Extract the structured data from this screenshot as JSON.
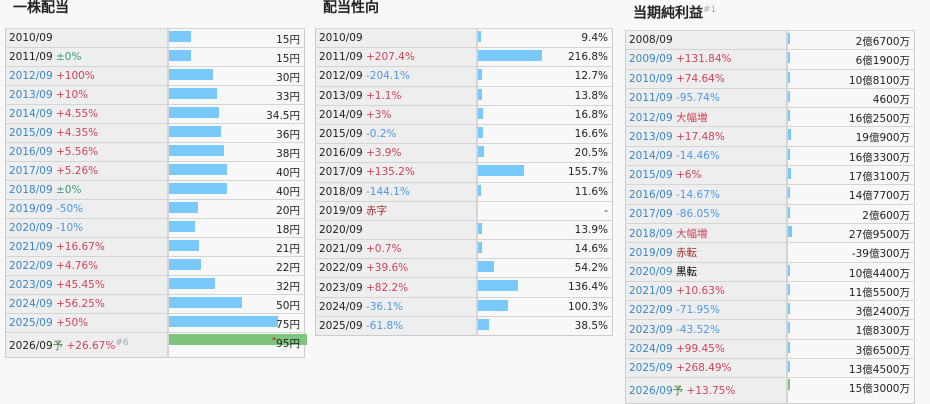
{
  "colors": {
    "bar": "#79c9fb",
    "forecast_bar": "#7dc57d",
    "up": "#d0445a",
    "down": "#4a9ae8"
  },
  "dividend": {
    "title": "一株配当",
    "rows": [
      {
        "period": "2010/09",
        "change": "",
        "type": "",
        "value": "15円",
        "num": 15
      },
      {
        "period": "2011/09",
        "change": "±0%",
        "type": "flat",
        "value": "15円",
        "num": 15
      },
      {
        "period": "2012/09",
        "change": "+100%",
        "type": "up",
        "value": "30円",
        "num": 30,
        "link": true
      },
      {
        "period": "2013/09",
        "change": "+10%",
        "type": "up",
        "value": "33円",
        "num": 33,
        "link": true
      },
      {
        "period": "2014/09",
        "change": "+4.55%",
        "type": "up",
        "value": "34.5円",
        "num": 34.5,
        "link": true
      },
      {
        "period": "2015/09",
        "change": "+4.35%",
        "type": "up",
        "value": "36円",
        "num": 36,
        "link": true
      },
      {
        "period": "2016/09",
        "change": "+5.56%",
        "type": "up",
        "value": "38円",
        "num": 38,
        "link": true
      },
      {
        "period": "2017/09",
        "change": "+5.26%",
        "type": "up",
        "value": "40円",
        "num": 40,
        "link": true
      },
      {
        "period": "2018/09",
        "change": "±0%",
        "type": "flat",
        "value": "40円",
        "num": 40,
        "link": true
      },
      {
        "period": "2019/09",
        "change": "-50%",
        "type": "down",
        "value": "20円",
        "num": 20,
        "link": true
      },
      {
        "period": "2020/09",
        "change": "-10%",
        "type": "down",
        "value": "18円",
        "num": 18,
        "link": true
      },
      {
        "period": "2021/09",
        "change": "+16.67%",
        "type": "up",
        "value": "21円",
        "num": 21,
        "link": true
      },
      {
        "period": "2022/09",
        "change": "+4.76%",
        "type": "up",
        "value": "22円",
        "num": 22,
        "link": true
      },
      {
        "period": "2023/09",
        "change": "+45.45%",
        "type": "up",
        "value": "32円",
        "num": 32,
        "link": true
      },
      {
        "period": "2024/09",
        "change": "+56.25%",
        "type": "up",
        "value": "50円",
        "num": 50,
        "link": true
      },
      {
        "period": "2025/09",
        "change": "+50%",
        "type": "up",
        "value": "75円",
        "num": 75,
        "link": true
      },
      {
        "period": "2026/09",
        "forecast": "予",
        "change": "+26.67%",
        "type": "up",
        "note": "#6",
        "asterisk": "*",
        "value": "95円",
        "num": 95
      }
    ]
  },
  "payout": {
    "title": "配当性向",
    "rows": [
      {
        "period": "2010/09",
        "change": "",
        "type": "",
        "value": "9.4%",
        "num": 9.4
      },
      {
        "period": "2011/09",
        "change": "+207.4%",
        "type": "up",
        "value": "216.8%",
        "num": 216.8
      },
      {
        "period": "2012/09",
        "change": "-204.1%",
        "type": "down",
        "value": "12.7%",
        "num": 12.7
      },
      {
        "period": "2013/09",
        "change": "+1.1%",
        "type": "up",
        "value": "13.8%",
        "num": 13.8
      },
      {
        "period": "2014/09",
        "change": "+3%",
        "type": "up",
        "value": "16.8%",
        "num": 16.8
      },
      {
        "period": "2015/09",
        "change": "-0.2%",
        "type": "down",
        "value": "16.6%",
        "num": 16.6
      },
      {
        "period": "2016/09",
        "change": "+3.9%",
        "type": "up",
        "value": "20.5%",
        "num": 20.5
      },
      {
        "period": "2017/09",
        "change": "+135.2%",
        "type": "up",
        "value": "155.7%",
        "num": 155.7
      },
      {
        "period": "2018/09",
        "change": "-144.1%",
        "type": "down",
        "value": "11.6%",
        "num": 11.6
      },
      {
        "period": "2019/09",
        "change": "赤字",
        "type": "dark",
        "value": "-",
        "num": 0
      },
      {
        "period": "2020/09",
        "change": "",
        "type": "",
        "value": "13.9%",
        "num": 13.9
      },
      {
        "period": "2021/09",
        "change": "+0.7%",
        "type": "up",
        "value": "14.6%",
        "num": 14.6
      },
      {
        "period": "2022/09",
        "change": "+39.6%",
        "type": "up",
        "value": "54.2%",
        "num": 54.2
      },
      {
        "period": "2023/09",
        "change": "+82.2%",
        "type": "up",
        "value": "136.4%",
        "num": 136.4
      },
      {
        "period": "2024/09",
        "change": "-36.1%",
        "type": "down",
        "value": "100.3%",
        "num": 100.3
      },
      {
        "period": "2025/09",
        "change": "-61.8%",
        "type": "down",
        "value": "38.5%",
        "num": 38.5
      }
    ]
  },
  "net_income": {
    "title": "当期純利益",
    "title_note": "#1",
    "rows": [
      {
        "period": "2008/09",
        "change": "",
        "type": "",
        "value": "2億6700万",
        "num": 26700
      },
      {
        "period": "2009/09",
        "change": "+131.84%",
        "type": "up",
        "value": "6億1900万",
        "num": 61900,
        "link": true
      },
      {
        "period": "2010/09",
        "change": "+74.64%",
        "type": "up",
        "value": "10億8100万",
        "num": 108100,
        "link": true
      },
      {
        "period": "2011/09",
        "change": "-95.74%",
        "type": "down",
        "value": "4600万",
        "num": 4600,
        "link": true
      },
      {
        "period": "2012/09",
        "change": "大幅増",
        "type": "up",
        "value": "16億2500万",
        "num": 162500,
        "link": true
      },
      {
        "period": "2013/09",
        "change": "+17.48%",
        "type": "up",
        "value": "19億900万",
        "num": 190900,
        "link": true
      },
      {
        "period": "2014/09",
        "change": "-14.46%",
        "type": "down",
        "value": "16億3300万",
        "num": 163300,
        "link": true
      },
      {
        "period": "2015/09",
        "change": "+6%",
        "type": "up",
        "value": "17億3100万",
        "num": 173100,
        "link": true
      },
      {
        "period": "2016/09",
        "change": "-14.67%",
        "type": "down",
        "value": "14億7700万",
        "num": 147700,
        "link": true
      },
      {
        "period": "2017/09",
        "change": "-86.05%",
        "type": "down",
        "value": "2億600万",
        "num": 20600,
        "link": true
      },
      {
        "period": "2018/09",
        "change": "大幅増",
        "type": "up",
        "value": "27億9500万",
        "num": 279500,
        "link": true
      },
      {
        "period": "2019/09",
        "change": "赤転",
        "type": "dark",
        "value": "-39億300万",
        "num": 0,
        "link": true
      },
      {
        "period": "2020/09",
        "change": "黒転",
        "type": "blk",
        "value": "10億4400万",
        "num": 104400,
        "link": true
      },
      {
        "period": "2021/09",
        "change": "+10.63%",
        "type": "up",
        "value": "11億5500万",
        "num": 115500,
        "link": true
      },
      {
        "period": "2022/09",
        "change": "-71.95%",
        "type": "down",
        "value": "3億2400万",
        "num": 32400,
        "link": true
      },
      {
        "period": "2023/09",
        "change": "-43.52%",
        "type": "down",
        "value": "1億8300万",
        "num": 18300,
        "link": true
      },
      {
        "period": "2024/09",
        "change": "+99.45%",
        "type": "up",
        "value": "3億6500万",
        "num": 36500,
        "link": true
      },
      {
        "period": "2025/09",
        "change": "+268.49%",
        "type": "up",
        "value": "13億4500万",
        "num": 134500,
        "link": true
      },
      {
        "period": "2026/09",
        "forecast": "予",
        "change": "+13.75%",
        "type": "up",
        "value": "15億3000万",
        "num": 153000,
        "link": true
      }
    ]
  }
}
